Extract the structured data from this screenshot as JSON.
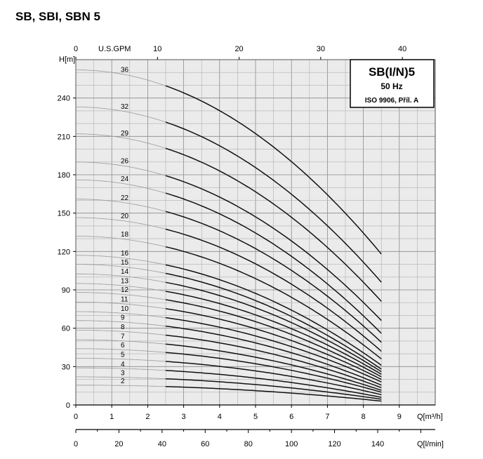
{
  "page_title": "SB, SBI, SBN 5",
  "chart_data": {
    "type": "line",
    "legend_box": {
      "title": "SB(I/N)5",
      "frequency": "50 Hz",
      "standard": "ISO 9906, Příl. A"
    },
    "y_axis": {
      "label": "H[m]",
      "ticks": [
        0,
        30,
        60,
        90,
        120,
        150,
        180,
        210,
        240
      ],
      "range": [
        0,
        270
      ]
    },
    "x_axis_m3h": {
      "label": "Q[m³/h]",
      "ticks": [
        0,
        1,
        2,
        3,
        4,
        5,
        6,
        7,
        8,
        9
      ],
      "range": [
        0,
        10
      ]
    },
    "x_axis_gpm": {
      "label": "U.S.GPM",
      "ticks": [
        0,
        10,
        20,
        30,
        40
      ],
      "range": [
        0,
        44.03
      ]
    },
    "x_axis_lmin": {
      "label": "Q[l/min]",
      "ticks": [
        0,
        20,
        40,
        60,
        80,
        100,
        120,
        140
      ],
      "range": [
        0,
        166.7
      ]
    },
    "series": [
      {
        "name": "2",
        "h0": 15.5,
        "h_end": 3
      },
      {
        "name": "3",
        "h0": 22,
        "h_end": 4.5
      },
      {
        "name": "4",
        "h0": 29,
        "h_end": 6
      },
      {
        "name": "5",
        "h0": 36.5,
        "h_end": 8
      },
      {
        "name": "6",
        "h0": 44,
        "h_end": 10
      },
      {
        "name": "7",
        "h0": 51,
        "h_end": 11.5
      },
      {
        "name": "8",
        "h0": 58.5,
        "h_end": 13.5
      },
      {
        "name": "9",
        "h0": 66,
        "h_end": 15.5
      },
      {
        "name": "10",
        "h0": 73,
        "h_end": 18
      },
      {
        "name": "11",
        "h0": 80.5,
        "h_end": 20
      },
      {
        "name": "12",
        "h0": 88,
        "h_end": 22
      },
      {
        "name": "13",
        "h0": 95,
        "h_end": 24
      },
      {
        "name": "14",
        "h0": 102.5,
        "h_end": 26
      },
      {
        "name": "15",
        "h0": 110,
        "h_end": 28
      },
      {
        "name": "16",
        "h0": 117,
        "h_end": 31
      },
      {
        "name": "18",
        "h0": 132,
        "h_end": 36
      },
      {
        "name": "20",
        "h0": 146.5,
        "h_end": 42
      },
      {
        "name": "22",
        "h0": 161,
        "h_end": 49
      },
      {
        "name": "24",
        "h0": 176,
        "h_end": 56
      },
      {
        "name": "26",
        "h0": 190,
        "h_end": 66
      },
      {
        "name": "29",
        "h0": 212,
        "h_end": 81
      },
      {
        "name": "32",
        "h0": 233,
        "h_end": 96
      },
      {
        "name": "36",
        "h0": 262,
        "h_end": 118
      }
    ],
    "q_max": 8.5,
    "q_bold_start": 2.5,
    "grid": true
  }
}
